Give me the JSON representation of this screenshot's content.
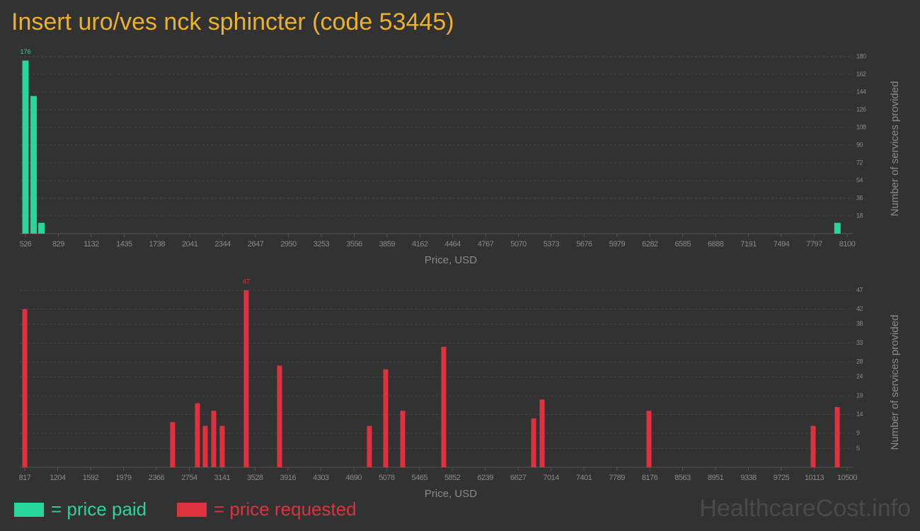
{
  "title": "Insert uro/ves nck sphincter (code 53445)",
  "watermark": "HealthcareCost.info",
  "chart_data": [
    {
      "type": "bar",
      "x_label": "Price, USD",
      "y_label": "Number of services provided",
      "x": [
        526,
        601,
        673,
        8011
      ],
      "series": [
        {
          "name": "= price paid",
          "color": "#27d69a",
          "values": [
            176,
            140,
            11,
            11
          ]
        }
      ],
      "xlim": [
        526,
        8100
      ],
      "xticks": [
        526,
        829,
        1132,
        1435,
        1738,
        2041,
        2344,
        2647,
        2950,
        3253,
        3556,
        3859,
        4162,
        4464,
        4767,
        5070,
        5373,
        5676,
        5979,
        6282,
        6585,
        6888,
        7191,
        7494,
        7797,
        8100
      ],
      "ylim": [
        0,
        180
      ],
      "yticks": [
        18,
        36,
        54,
        72,
        90,
        108,
        126,
        144,
        162,
        180
      ],
      "grid": true
    },
    {
      "type": "bar",
      "x_label": "Price, USD",
      "y_label": "Number of services provided",
      "x": [
        817,
        2558,
        2850,
        2942,
        3042,
        3142,
        3425,
        3817,
        4875,
        5067,
        5267,
        5750,
        6809,
        6909,
        8167,
        10100,
        10384
      ],
      "series": [
        {
          "name": "= price requested",
          "color": "#e0313f",
          "values": [
            42,
            12,
            17,
            11,
            15,
            11,
            47,
            27,
            11,
            26,
            15,
            32,
            13,
            18,
            15,
            11,
            16
          ]
        }
      ],
      "xlim": [
        817,
        10500
      ],
      "xticks": [
        817,
        1204,
        1592,
        1979,
        2366,
        2754,
        3141,
        3528,
        3916,
        4303,
        4690,
        5078,
        5465,
        5852,
        6239,
        6627,
        7014,
        7401,
        7789,
        8176,
        8563,
        8951,
        9338,
        9725,
        10113,
        10500
      ],
      "ylim": [
        0,
        47
      ],
      "yticks": [
        5,
        9,
        14,
        19,
        24,
        28,
        33,
        38,
        42,
        47
      ],
      "grid": true
    }
  ]
}
